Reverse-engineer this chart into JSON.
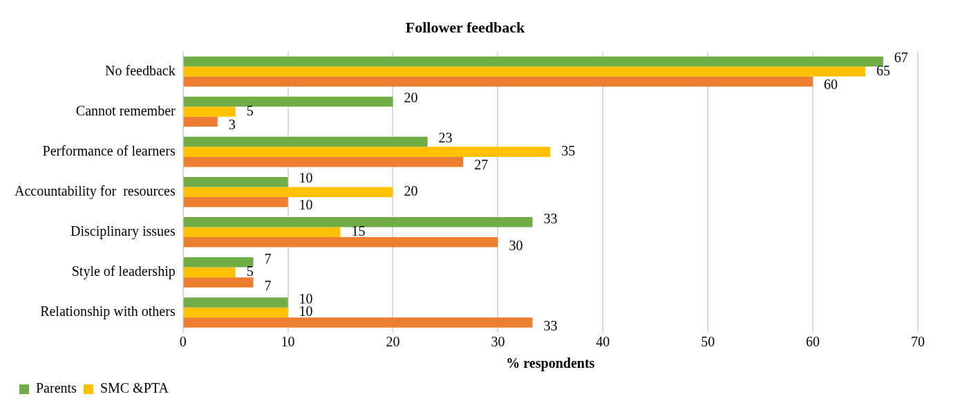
{
  "chart_data": {
    "type": "bar",
    "orientation": "horizontal",
    "title": "Follower feedback",
    "xlabel": "% respondents",
    "categories": [
      "No feedback",
      "Cannot remember",
      "Performance of learners",
      "Accountability for  resources",
      "Disciplinary issues",
      "Style of leadership",
      "Relationship with others"
    ],
    "series": [
      {
        "name": "Parents",
        "color": "#70ad47",
        "values": [
          66.7,
          20,
          23.3,
          10,
          33.3,
          6.7,
          10
        ],
        "value_labels": [
          "67",
          "20",
          "23",
          "10",
          "33",
          "7",
          "10"
        ]
      },
      {
        "name": "SMC &PTA",
        "color": "#ffc000",
        "values": [
          65,
          5,
          35,
          20,
          15,
          5,
          10
        ],
        "value_labels": [
          "65",
          "5",
          "35",
          "20",
          "15",
          "5",
          "10"
        ]
      },
      {
        "color": "#ed7d31",
        "values": [
          60,
          3.3,
          26.7,
          10,
          30,
          6.7,
          33.3
        ],
        "value_labels": [
          "60",
          "3",
          "27",
          "10",
          "30",
          "7",
          "33"
        ]
      }
    ],
    "xlim": [
      0,
      70
    ],
    "xticks": [
      0,
      10,
      20,
      30,
      40,
      50,
      60,
      70
    ],
    "grid": "x",
    "legend": "bottom"
  }
}
